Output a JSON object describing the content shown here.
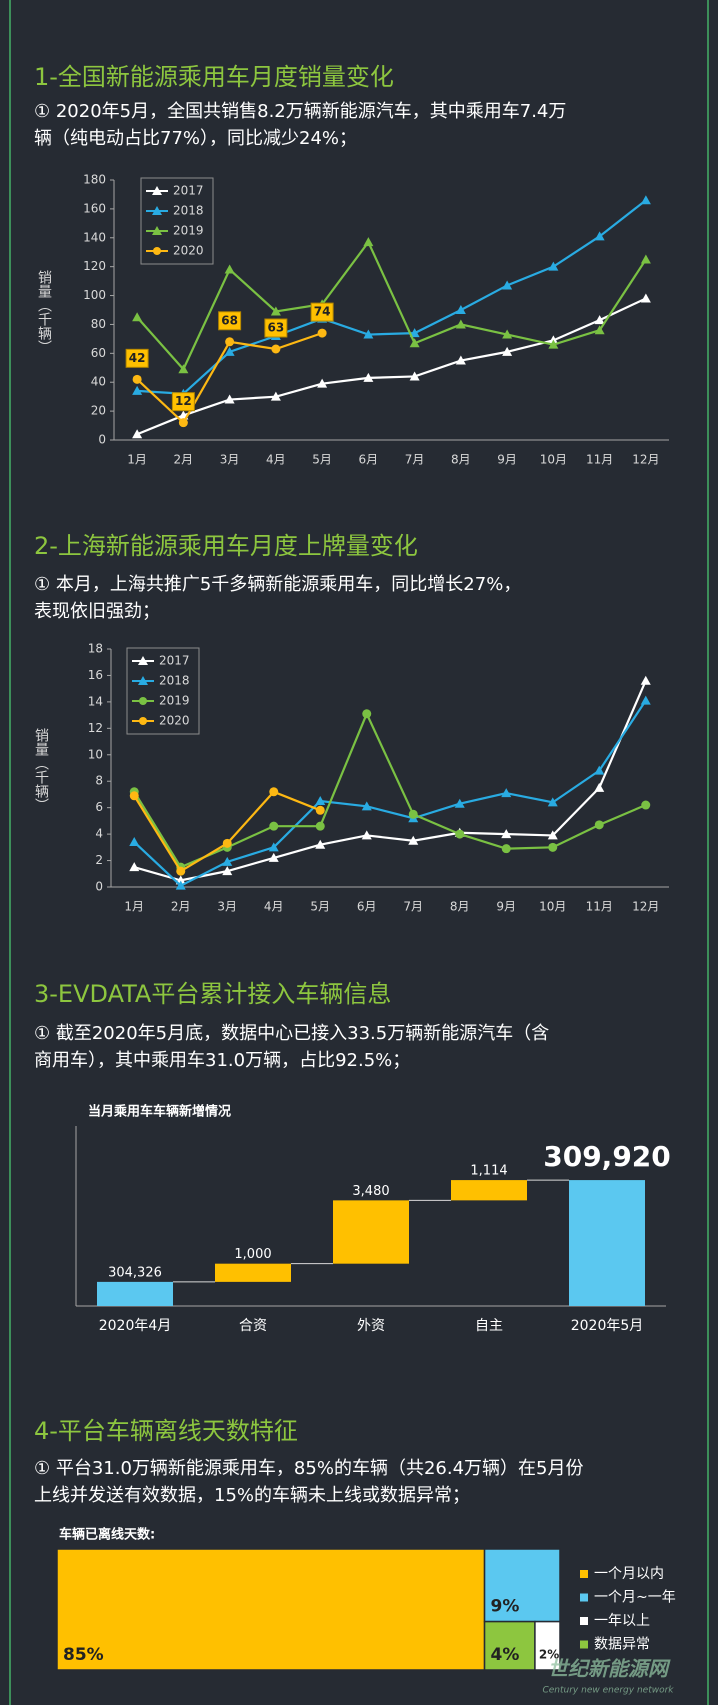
{
  "sections": [
    {
      "title": "1-全国新能源乘用车月度销量变化",
      "text": [
        "① 2020年5月，全国共销售8.2万辆新能源汽车，其中乘用车7.4万",
        "辆（纯电动占比77%），同比减少24%；"
      ]
    },
    {
      "title": "2-上海新能源乘用车月度上牌量变化",
      "text": [
        "① 本月，上海共推广5千多辆新能源乘用车，同比增长27%，",
        "表现依旧强劲；"
      ]
    },
    {
      "title": "3-EVDATA平台累计接入车辆信息",
      "text": [
        "① 截至2020年5月底，数据中心已接入33.5万辆新能源汽车（含",
        "商用车），其中乘用车31.0万辆，占比92.5%；"
      ]
    },
    {
      "title": "4-平台车辆离线天数特征",
      "text": [
        "① 平台31.0万辆新能源乘用车，85%的车辆（共26.4万辆）在5月份",
        "上线并发送有效数据，15%的车辆未上线或数据异常；"
      ]
    }
  ],
  "chart_data": [
    {
      "type": "line",
      "y_label": "销量（千辆）",
      "categories": [
        "1月",
        "2月",
        "3月",
        "4月",
        "5月",
        "6月",
        "7月",
        "8月",
        "9月",
        "10月",
        "11月",
        "12月"
      ],
      "ylim": [
        0,
        180
      ],
      "yticks": [
        0,
        20,
        40,
        60,
        80,
        100,
        120,
        140,
        160,
        180
      ],
      "legend": "top-left",
      "series": [
        {
          "name": "2017",
          "color": "#ffffff",
          "marker": "triangle",
          "values": [
            4,
            17,
            28,
            30,
            39,
            43,
            44,
            55,
            61,
            69,
            83,
            98
          ]
        },
        {
          "name": "2018",
          "color": "#29abe2",
          "marker": "triangle",
          "values": [
            34,
            32,
            61,
            72,
            84,
            73,
            74,
            90,
            107,
            120,
            141,
            166
          ]
        },
        {
          "name": "2019",
          "color": "#7ac143",
          "marker": "triangle",
          "values": [
            85,
            49,
            118,
            89,
            94,
            137,
            67,
            80,
            73,
            66,
            76,
            125
          ]
        },
        {
          "name": "2020",
          "color": "#fdb813",
          "marker": "circle",
          "data_labels": true,
          "values": [
            42,
            12,
            68,
            63,
            74,
            null,
            null,
            null,
            null,
            null,
            null,
            null
          ]
        }
      ]
    },
    {
      "type": "line",
      "y_label": "销量（千辆）",
      "categories": [
        "1月",
        "2月",
        "3月",
        "4月",
        "5月",
        "6月",
        "7月",
        "8月",
        "9月",
        "10月",
        "11月",
        "12月"
      ],
      "ylim": [
        0,
        18
      ],
      "yticks": [
        0,
        2,
        4,
        6,
        8,
        10,
        12,
        14,
        16,
        18
      ],
      "legend": "top-left",
      "series": [
        {
          "name": "2017",
          "color": "#ffffff",
          "marker": "triangle",
          "values": [
            1.5,
            0.5,
            1.2,
            2.2,
            3.2,
            3.9,
            3.5,
            4.1,
            4.0,
            3.9,
            7.5,
            15.6
          ]
        },
        {
          "name": "2018",
          "color": "#29abe2",
          "marker": "triangle",
          "values": [
            3.4,
            0.1,
            1.9,
            3.0,
            6.5,
            6.1,
            5.2,
            6.3,
            7.1,
            6.4,
            8.8,
            14.1
          ]
        },
        {
          "name": "2019",
          "color": "#7ac143",
          "marker": "circle",
          "values": [
            7.2,
            1.5,
            3.0,
            4.6,
            4.6,
            13.1,
            5.5,
            4.0,
            2.9,
            3.0,
            4.7,
            6.2
          ]
        },
        {
          "name": "2020",
          "color": "#fdb813",
          "marker": "circle",
          "values": [
            6.9,
            1.2,
            3.3,
            7.2,
            5.8,
            null,
            null,
            null,
            null,
            null,
            null,
            null
          ]
        }
      ]
    },
    {
      "type": "waterfall",
      "title": "当月乘用车车辆新增情况",
      "categories": [
        "2020年4月",
        "合资",
        "外资",
        "自主",
        "2020年5月"
      ],
      "kinds": [
        "total",
        "increase",
        "increase",
        "increase",
        "total"
      ],
      "values": [
        304326,
        1000,
        3480,
        1114,
        309920
      ],
      "value_labels": [
        "304,326",
        "1,000",
        "3,480",
        "1,114",
        "309,920"
      ],
      "ylim": [
        303000,
        310200
      ],
      "total_color": "#5bc8f0",
      "increase_color": "#ffc000"
    },
    {
      "type": "treemap",
      "title": "车辆已离线天数:",
      "categories": [
        "一个月以内",
        "一个月~一年",
        "一年以上",
        "数据异常"
      ],
      "values": [
        85,
        9,
        2,
        4
      ],
      "value_labels": [
        "85%",
        "9%",
        "2%",
        "4%"
      ],
      "colors": [
        "#ffc000",
        "#5bc8f0",
        "#ffffff",
        "#8dc63f"
      ]
    }
  ],
  "watermark": {
    "text": "世纪新能源网",
    "subtext": "Century new energy network"
  }
}
